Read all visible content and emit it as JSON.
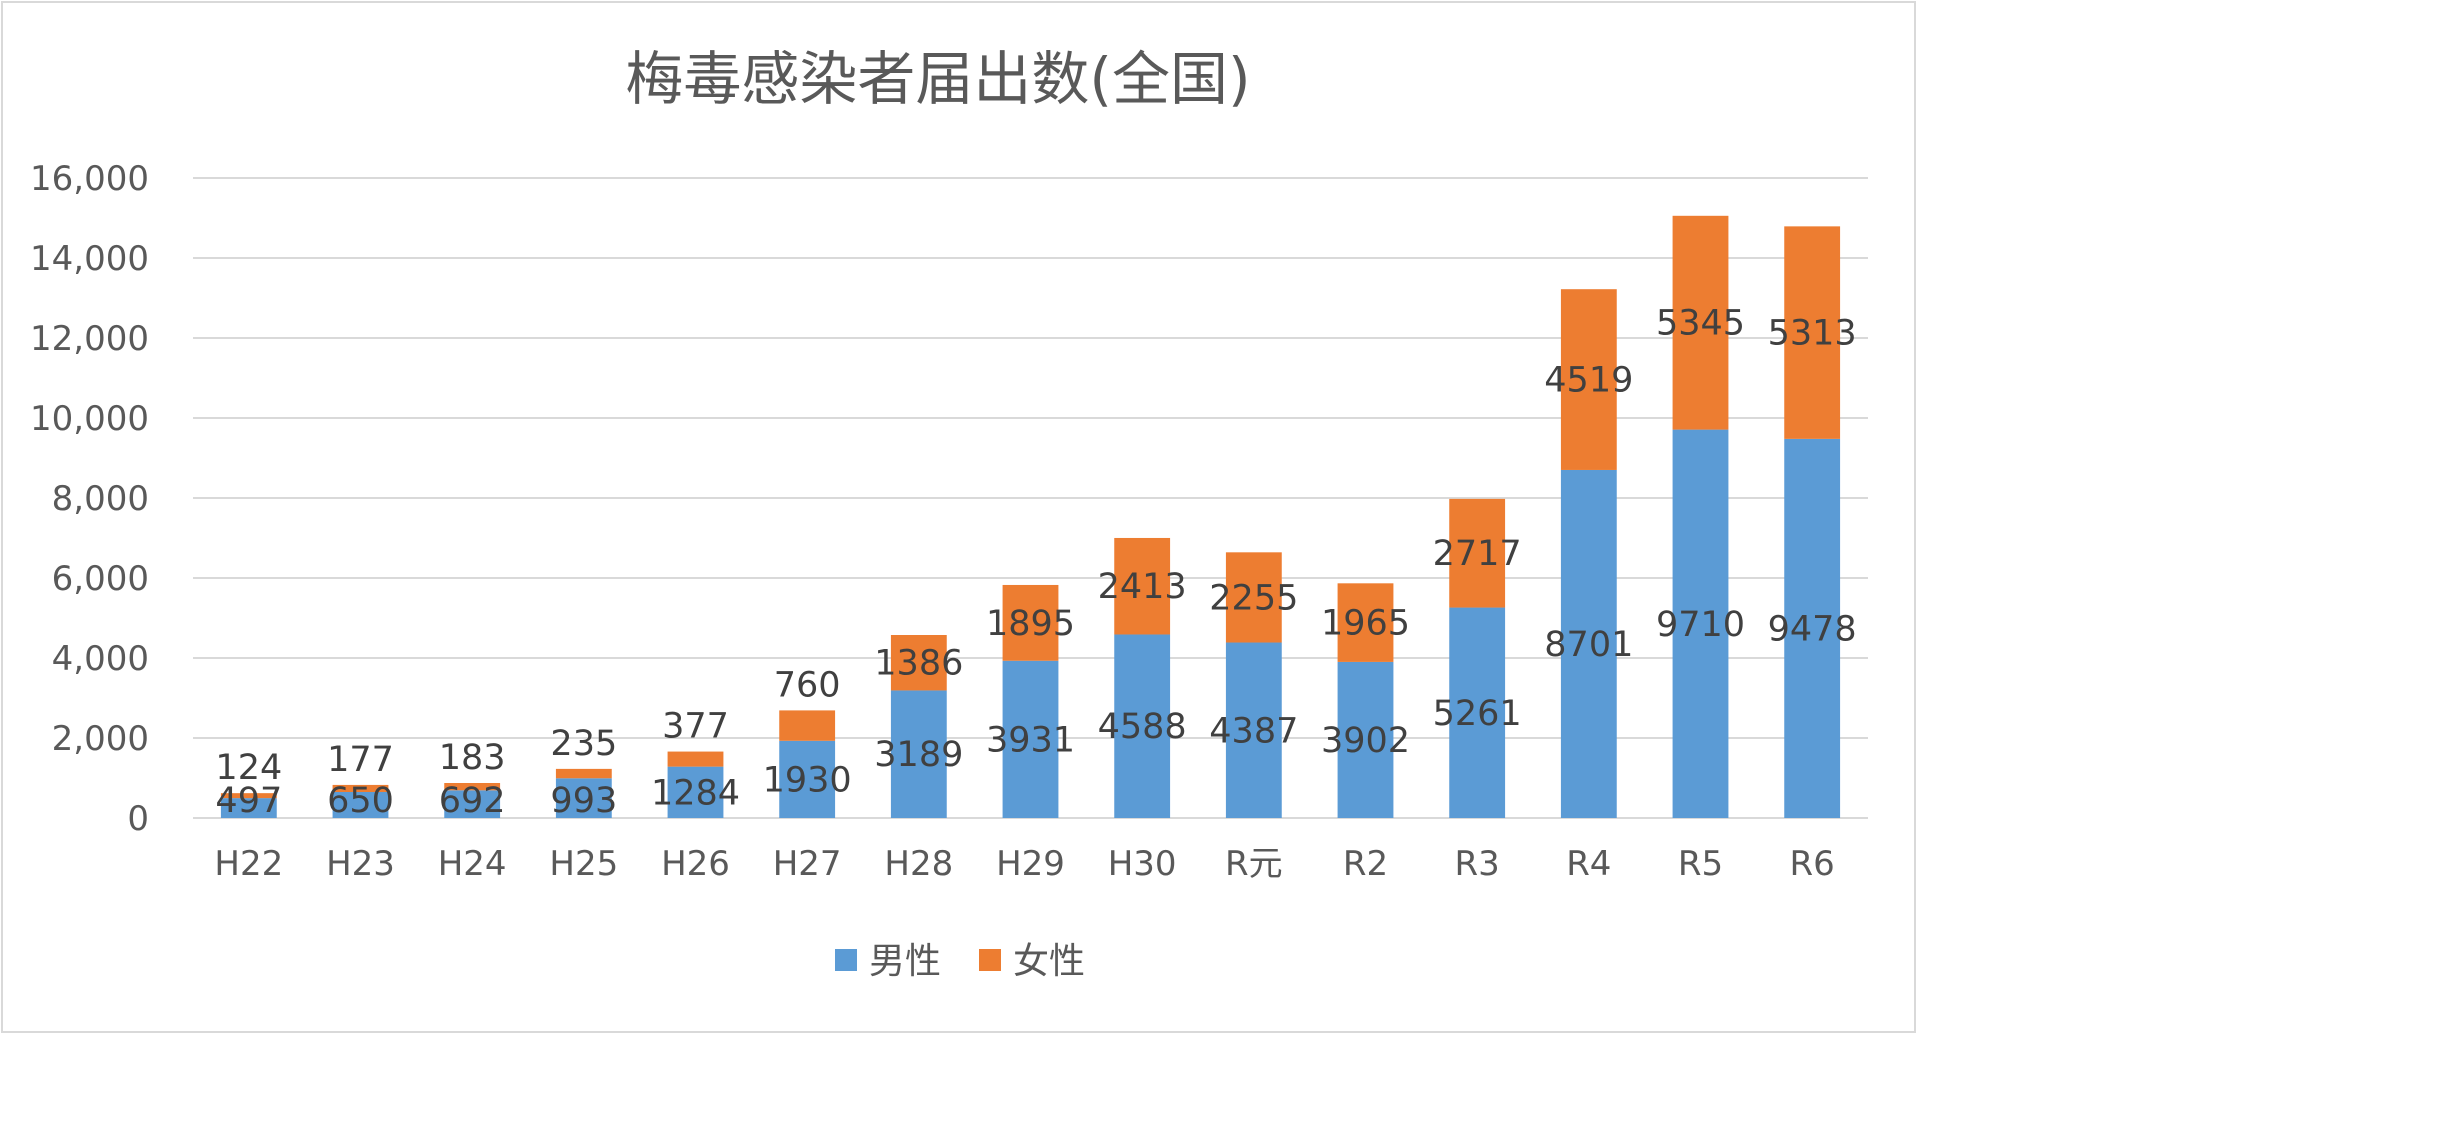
{
  "chart_data": {
    "type": "bar",
    "stacked": true,
    "title": "梅毒感染者届出数(全国)",
    "xlabel": "",
    "ylabel": "",
    "ylim": [
      0,
      16000
    ],
    "yticks": [
      0,
      2000,
      4000,
      6000,
      8000,
      10000,
      12000,
      14000,
      16000
    ],
    "ytick_labels": [
      "0",
      "2,000",
      "4,000",
      "6,000",
      "8,000",
      "10,000",
      "12,000",
      "14,000",
      "16,000"
    ],
    "categories": [
      "H22",
      "H23",
      "H24",
      "H25",
      "H26",
      "H27",
      "H28",
      "H29",
      "H30",
      "R元",
      "R2",
      "R3",
      "R4",
      "R5",
      "R6"
    ],
    "series": [
      {
        "name": "男性",
        "color": "#5b9bd5",
        "values": [
          497,
          650,
          692,
          993,
          1284,
          1930,
          3189,
          3931,
          4588,
          4387,
          3902,
          5261,
          8701,
          9710,
          9478
        ]
      },
      {
        "name": "女性",
        "color": "#ed7d31",
        "values": [
          124,
          177,
          183,
          235,
          377,
          760,
          1386,
          1895,
          2413,
          2255,
          1965,
          2717,
          4519,
          5345,
          5313
        ]
      }
    ],
    "grid": true,
    "legend_position": "bottom"
  }
}
